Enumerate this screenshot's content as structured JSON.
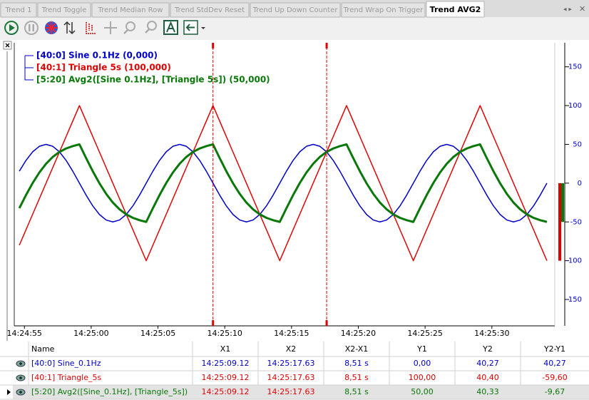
{
  "tabs": [
    "Trend 1",
    "Trend Toggle",
    "Trend Median Row",
    "Trend StdDev Reset",
    "Trend Up Down Counter",
    "Trend Wrap On Trigger",
    "Trend AVG2"
  ],
  "chart_data": {
    "type": "line",
    "legend": "upper left",
    "grid": false,
    "x": [
      51894.62,
      51895.12,
      51895.62,
      51896.12,
      51896.62,
      51897.12,
      51897.62,
      51898.12,
      51898.62,
      51899.12,
      51899.62,
      51900.12,
      51900.62,
      51901.12,
      51901.62,
      51902.12,
      51902.62,
      51903.12,
      51903.62,
      51904.12,
      51904.62,
      51905.12,
      51905.62,
      51906.12,
      51906.62,
      51907.12,
      51907.62,
      51908.12,
      51908.62,
      51909.12,
      51909.62,
      51910.12,
      51910.62,
      51911.12,
      51911.62,
      51912.12,
      51912.62,
      51913.12,
      51913.62,
      51914.12,
      51914.62,
      51915.12,
      51915.62,
      51916.12,
      51916.62,
      51917.12,
      51917.62,
      51918.12,
      51918.62,
      51919.12,
      51919.62,
      51920.12,
      51920.62,
      51921.12,
      51921.62,
      51922.12,
      51922.62,
      51923.12,
      51923.62,
      51924.12,
      51924.62,
      51925.12,
      51925.62,
      51926.12,
      51926.62,
      51927.12,
      51927.62,
      51928.12,
      51928.62,
      51929.12,
      51929.62,
      51930.12,
      51930.62,
      51931.12,
      51931.62,
      51932.12,
      51932.62,
      51933.12,
      51933.62,
      51934.12
    ],
    "series": [
      {
        "name": "[40:0] Sine 0.1Hz (0,000)",
        "color": "#0000c8",
        "width": 1.5,
        "values": [
          15.45,
          29.39,
          40.45,
          47.55,
          50,
          47.55,
          40.45,
          29.39,
          15.45,
          0,
          -15.45,
          -29.39,
          -40.45,
          -47.55,
          -50,
          -47.55,
          -40.45,
          -29.39,
          -15.45,
          0,
          15.45,
          29.39,
          40.45,
          47.55,
          50,
          47.55,
          40.45,
          29.39,
          15.45,
          0,
          -15.45,
          -29.39,
          -40.45,
          -47.55,
          -50,
          -47.55,
          -40.45,
          -29.39,
          -15.45,
          0,
          15.45,
          29.39,
          40.45,
          47.55,
          50,
          47.55,
          40.45,
          29.39,
          15.45,
          0,
          -15.45,
          -29.39,
          -40.45,
          -47.55,
          -50,
          -47.55,
          -40.45,
          -29.39,
          -15.45,
          0,
          15.45,
          29.39,
          40.45,
          47.55,
          50,
          47.55,
          40.45,
          29.39,
          15.45,
          0,
          -15.45,
          -29.39,
          -40.45,
          -47.55,
          -50,
          -47.55,
          -40.45,
          -29.39,
          -15.45,
          0
        ]
      },
      {
        "name": "[40:1] Triangle 5s (100,000)",
        "color": "#e00000",
        "width": 1.5,
        "values": [
          -80,
          -60,
          -40,
          -20,
          0,
          20,
          40,
          60,
          80,
          100,
          80,
          60,
          40,
          20,
          0,
          -20,
          -40,
          -60,
          -80,
          -100,
          -80,
          -60,
          -40,
          -20,
          0,
          20,
          40,
          60,
          80,
          100,
          80,
          60,
          40,
          20,
          0,
          -20,
          -40,
          -60,
          -80,
          -100,
          -80,
          -60,
          -40,
          -20,
          0,
          20,
          40,
          60,
          80,
          100,
          80,
          60,
          40,
          20,
          0,
          -20,
          -40,
          -60,
          -80,
          -100,
          -80,
          -60,
          -40,
          -20,
          0,
          20,
          40,
          60,
          80,
          100,
          80,
          60,
          40,
          20,
          0,
          -20,
          -40,
          -60,
          -80,
          -100
        ]
      },
      {
        "name": "[5:20] Avg2([Sine 0.1Hz], [Triangle 5s]) (50,000)",
        "color": "#087808",
        "width": 3,
        "values": [
          -32.28,
          -15.31,
          0.23,
          13.78,
          25,
          33.78,
          40.23,
          44.7,
          47.73,
          50,
          32.28,
          15.31,
          -0.23,
          -13.78,
          -25,
          -33.78,
          -40.23,
          -44.7,
          -47.73,
          -50,
          -32.28,
          -15.31,
          0.23,
          13.78,
          25,
          33.78,
          40.23,
          44.7,
          47.73,
          50,
          32.28,
          15.31,
          -0.23,
          -13.78,
          -25,
          -33.78,
          -40.23,
          -44.7,
          -47.73,
          -50,
          -32.28,
          -15.31,
          0.23,
          13.78,
          25,
          33.78,
          40.23,
          44.7,
          47.73,
          50,
          32.28,
          15.31,
          -0.23,
          -13.78,
          -25,
          -33.78,
          -40.23,
          -44.7,
          -47.73,
          -50,
          -32.28,
          -15.31,
          0.23,
          13.78,
          25,
          33.78,
          40.23,
          44.7,
          47.73,
          50,
          32.28,
          15.31,
          -0.23,
          -13.78,
          -25,
          -33.78,
          -40.23,
          -44.7,
          -47.73,
          -50
        ]
      }
    ],
    "xlim": [
      51894.24,
      51934.71
    ],
    "xticks": [
      {
        "value": 51895,
        "label": "14:24:55"
      },
      {
        "value": 51900,
        "label": "14:25:00"
      },
      {
        "value": 51905,
        "label": "14:25:05"
      },
      {
        "value": 51910,
        "label": "14:25:10"
      },
      {
        "value": 51915,
        "label": "14:25:15"
      },
      {
        "value": 51920,
        "label": "14:25:20"
      },
      {
        "value": 51925,
        "label": "14:25:25"
      },
      {
        "value": 51930,
        "label": "14:25:30"
      }
    ],
    "ylim": [
      -184,
      181
    ],
    "yticks": [
      150,
      100,
      50,
      0,
      -50,
      -100,
      -150
    ],
    "cursors": [
      51909.12,
      51917.63
    ]
  },
  "table": {
    "header": [
      "Name",
      "X1",
      "X2",
      "X2-X1",
      "Y1",
      "Y2",
      "Y2-Y1"
    ],
    "rows": [
      [
        "[40:0] Sine_0.1Hz",
        "14:25:09.12",
        "14:25:17.63",
        "8,51 s",
        "0,00",
        "40,27",
        "40,27"
      ],
      [
        "[40:1] Triangle_5s",
        "14:25:09.12",
        "14:25:17.63",
        "8,51 s",
        "100,00",
        "40,40",
        "-59,60"
      ],
      [
        "[5:20] Avg2([Sine_0.1Hz], [Triangle_5s])",
        "14:25:09.12",
        "14:25:17.63",
        "8,51 s",
        "50,00",
        "40,33",
        "-9,67"
      ]
    ]
  }
}
